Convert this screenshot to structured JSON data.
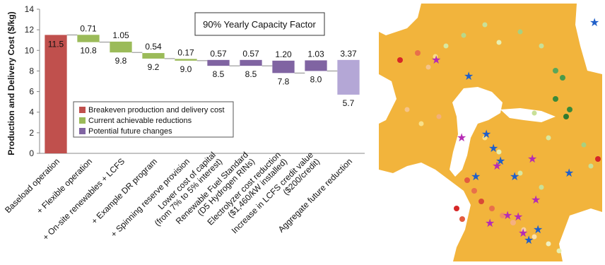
{
  "chart_data": {
    "type": "bar",
    "subtype": "waterfall",
    "ylabel": "Production and Delivery Cost ($/kg)",
    "ylim": [
      0,
      14
    ],
    "yticks": [
      0,
      2,
      4,
      6,
      8,
      10,
      12,
      14
    ],
    "annotation": "90% Yearly Capacity Factor",
    "legend": [
      {
        "label": "Breakeven production and delivery cost",
        "color": "#c0504d"
      },
      {
        "label": "Current achievable reductions",
        "color": "#9bbb59"
      },
      {
        "label": "Potential future changes",
        "color": "#8064a2"
      }
    ],
    "legend_position": "center",
    "bars": [
      {
        "category": "Baseload operation",
        "change": null,
        "total": 11.5,
        "group": "breakeven",
        "color": "#c0504d",
        "change_label": "",
        "total_label": "11.5"
      },
      {
        "category": "+ Flexible operation",
        "change": 0.71,
        "total": 10.8,
        "group": "current",
        "color": "#9bbb59",
        "change_label": "0.71",
        "total_label": "10.8"
      },
      {
        "category": "+ On-site renewables + LCFS",
        "change": 1.05,
        "total": 9.8,
        "group": "current",
        "color": "#9bbb59",
        "change_label": "1.05",
        "total_label": "9.8"
      },
      {
        "category": "+ Example DR program",
        "change": 0.54,
        "total": 9.2,
        "group": "current",
        "color": "#9bbb59",
        "change_label": "0.54",
        "total_label": "9.2"
      },
      {
        "category": "+ Spinning reserve provision",
        "change": 0.17,
        "total": 9.0,
        "group": "current",
        "color": "#9bbb59",
        "change_label": "0.17",
        "total_label": "9.0"
      },
      {
        "category": "Lower cost of capital (from 7% to 5% interest)",
        "change": 0.57,
        "total": 8.5,
        "group": "future",
        "color": "#8064a2",
        "change_label": "0.57",
        "total_label": "8.5"
      },
      {
        "category": "Renewable Fuel Standard (D5 Hydrogen RINs)",
        "change": 0.57,
        "total": 8.5,
        "group": "future",
        "color": "#8064a2",
        "change_label": "0.57",
        "total_label": "8.5"
      },
      {
        "category": "Electrolyzer cost reduction ($1,460/kW installed)",
        "change": 1.2,
        "total": 7.8,
        "group": "future",
        "color": "#8064a2",
        "change_label": "1.20",
        "total_label": "7.8"
      },
      {
        "category": "Increase in LCFS credit value ($200/credit)",
        "change": 1.03,
        "total": 8.0,
        "group": "future",
        "color": "#8064a2",
        "change_label": "1.03",
        "total_label": "8.0"
      },
      {
        "category": "Aggregate future reduction",
        "change": 3.37,
        "total": 5.7,
        "group": "aggregate",
        "color": "#b4a7d6",
        "change_label": "3.37",
        "total_label": "5.7"
      }
    ]
  },
  "map": {
    "land_color": "#f2b43c",
    "water_color": "#ffffff",
    "station_marker_color": "#1f5fc9",
    "highlight_marker_color": "#b52bb5"
  }
}
